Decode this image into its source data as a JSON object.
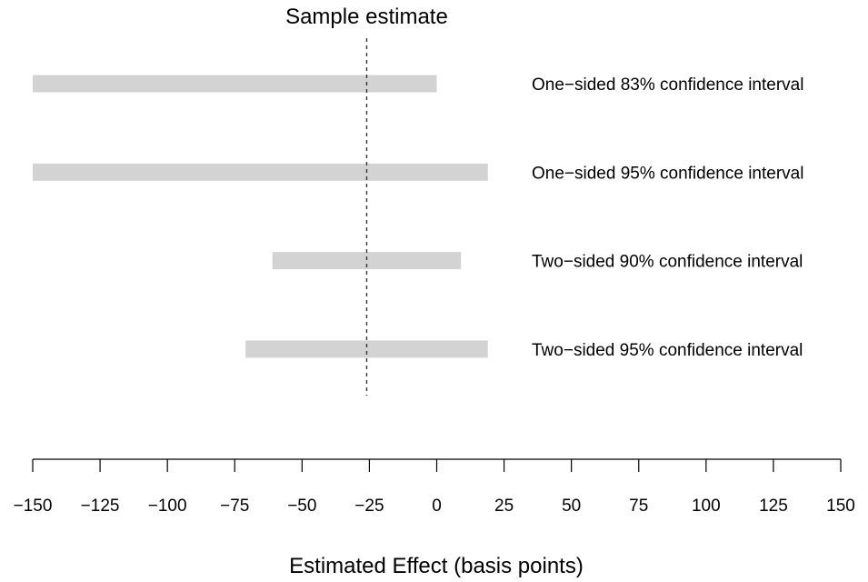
{
  "chart_data": {
    "type": "bar",
    "orientation": "horizontal-intervals",
    "title": "",
    "xlabel": "Estimated Effect (basis points)",
    "ylabel": "",
    "xlim": [
      -150,
      150
    ],
    "grid": false,
    "legend": "none",
    "x_ticks": [
      -150,
      -125,
      -100,
      -75,
      -50,
      -25,
      0,
      25,
      50,
      75,
      100,
      125,
      150
    ],
    "x_tick_labels": [
      "−150",
      "−125",
      "−100",
      "−75",
      "−50",
      "−25",
      "0",
      "25",
      "50",
      "75",
      "100",
      "125",
      "150"
    ],
    "intervals": [
      {
        "label": "One−sided 83% confidence interval",
        "low": -150,
        "high": 0
      },
      {
        "label": "One−sided 95% confidence interval",
        "low": -150,
        "high": 19
      },
      {
        "label": "Two−sided 90% confidence interval",
        "low": -61,
        "high": 9
      },
      {
        "label": "Two−sided 95% confidence interval",
        "low": -71,
        "high": 19
      }
    ],
    "reference_line": {
      "label": "Sample estimate",
      "x": -26,
      "style": "dashed"
    },
    "colors": {
      "interval_fill": "#d3d3d3",
      "reference_line": "#333333",
      "axis": "#000000",
      "text": "#000000",
      "background": "#ffffff"
    }
  }
}
